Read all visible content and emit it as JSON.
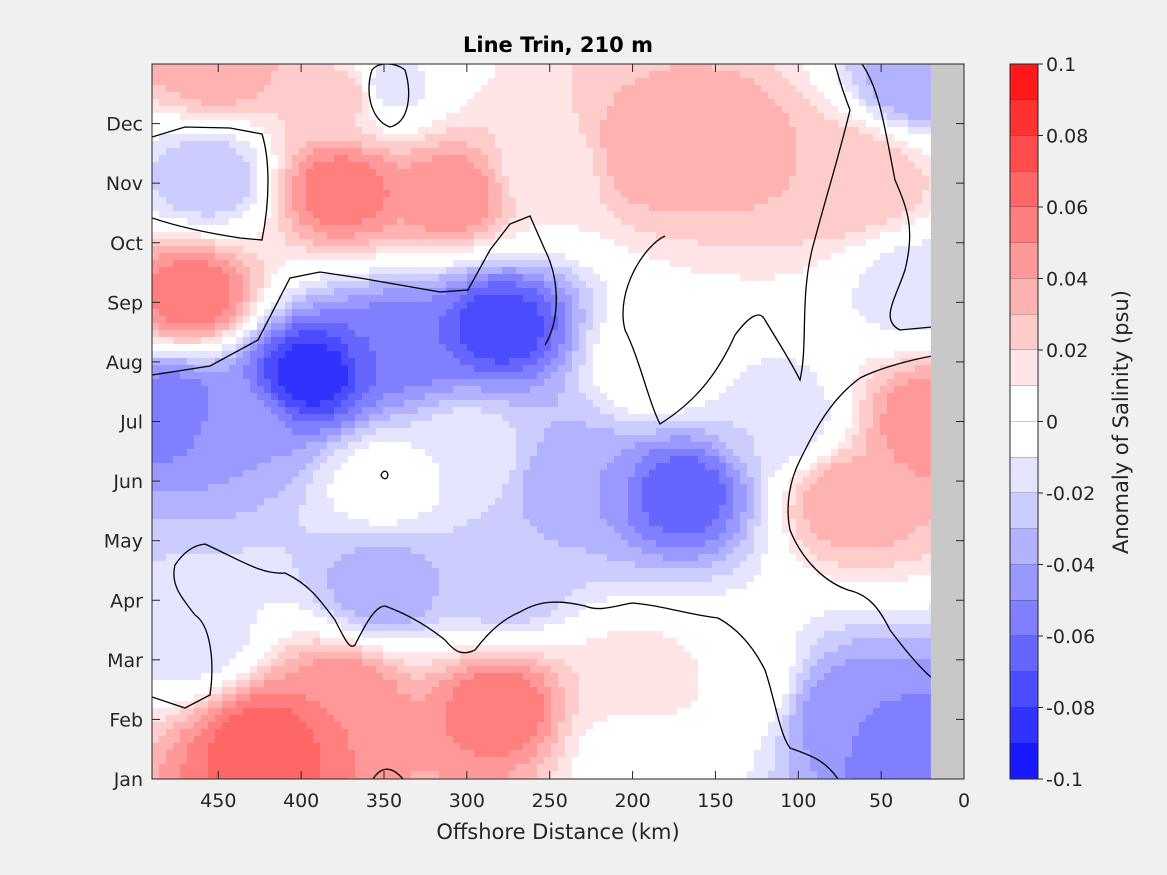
{
  "chart_data": {
    "type": "heatmap",
    "title": "Line Trin, 210 m",
    "xlabel": "Offshore Distance (km)",
    "ylabel": "",
    "colorbar_label": "Anomaly of Salinity (psu)",
    "x_reversed": true,
    "xlim": [
      0,
      490
    ],
    "ylim": [
      0,
      12
    ],
    "x_ticks": [
      450,
      400,
      350,
      300,
      250,
      200,
      150,
      100,
      50,
      0
    ],
    "x_tick_labels": [
      "450",
      "400",
      "350",
      "300",
      "250",
      "200",
      "150",
      "100",
      "50",
      "0"
    ],
    "y_ticks": [
      0,
      1,
      2,
      3,
      4,
      5,
      6,
      7,
      8,
      9,
      10,
      11
    ],
    "y_tick_labels": [
      "Jan",
      "Feb",
      "Mar",
      "Apr",
      "May",
      "Jun",
      "Jul",
      "Aug",
      "Sep",
      "Oct",
      "Nov",
      "Dec"
    ],
    "color_limits": [
      -0.1,
      0.1
    ],
    "colorbar_ticks": [
      0.1,
      0.08,
      0.06,
      0.04,
      0.02,
      0,
      -0.02,
      -0.04,
      -0.06,
      -0.08,
      -0.1
    ],
    "colorbar_tick_labels": [
      "0.1",
      "0.08",
      "0.06",
      "0.04",
      "0.02",
      "0",
      "-0.02",
      "-0.04",
      "-0.06",
      "-0.08",
      "-0.1"
    ],
    "no_data_x_range": [
      0,
      20
    ],
    "anomaly_features": [
      {
        "x": 450,
        "y": 12.0,
        "value": 0.04
      },
      {
        "x": 370,
        "y": 11.5,
        "value": 0.03
      },
      {
        "x": 350,
        "y": 11.6,
        "value": -0.02
      },
      {
        "x": 455,
        "y": 10.1,
        "value": -0.03
      },
      {
        "x": 375,
        "y": 9.9,
        "value": 0.06
      },
      {
        "x": 310,
        "y": 9.8,
        "value": 0.05
      },
      {
        "x": 190,
        "y": 10.5,
        "value": 0.04
      },
      {
        "x": 140,
        "y": 10.6,
        "value": 0.04
      },
      {
        "x": 250,
        "y": 10.2,
        "value": 0.01
      },
      {
        "x": 80,
        "y": 10.2,
        "value": 0.03
      },
      {
        "x": 30,
        "y": 11.7,
        "value": -0.04
      },
      {
        "x": 465,
        "y": 8.1,
        "value": 0.06
      },
      {
        "x": 475,
        "y": 6.2,
        "value": -0.06
      },
      {
        "x": 395,
        "y": 6.8,
        "value": -0.09
      },
      {
        "x": 340,
        "y": 7.3,
        "value": -0.06
      },
      {
        "x": 280,
        "y": 7.6,
        "value": -0.08
      },
      {
        "x": 440,
        "y": 6.0,
        "value": -0.04
      },
      {
        "x": 350,
        "y": 5.0,
        "value": 0.0
      },
      {
        "x": 300,
        "y": 5.5,
        "value": -0.01
      },
      {
        "x": 235,
        "y": 5.0,
        "value": -0.04
      },
      {
        "x": 170,
        "y": 4.8,
        "value": -0.07
      },
      {
        "x": 110,
        "y": 6.0,
        "value": -0.02
      },
      {
        "x": 185,
        "y": 7.0,
        "value": 0.01
      },
      {
        "x": 350,
        "y": 3.2,
        "value": -0.04
      },
      {
        "x": 275,
        "y": 3.3,
        "value": -0.03
      },
      {
        "x": 465,
        "y": 2.4,
        "value": -0.02
      },
      {
        "x": 420,
        "y": 0.6,
        "value": 0.07
      },
      {
        "x": 375,
        "y": 1.4,
        "value": 0.05
      },
      {
        "x": 280,
        "y": 1.2,
        "value": 0.06
      },
      {
        "x": 200,
        "y": 1.6,
        "value": 0.02
      },
      {
        "x": 140,
        "y": 1.6,
        "value": 0.01
      },
      {
        "x": 200,
        "y": 0.5,
        "value": 0.0
      },
      {
        "x": 70,
        "y": 1.1,
        "value": -0.05
      },
      {
        "x": 30,
        "y": 0.4,
        "value": -0.06
      },
      {
        "x": 20,
        "y": 6.0,
        "value": 0.05
      },
      {
        "x": 70,
        "y": 4.7,
        "value": 0.04
      },
      {
        "x": 60,
        "y": 10.0,
        "value": 0.03
      },
      {
        "x": 30,
        "y": 8.3,
        "value": -0.02
      }
    ]
  },
  "colors": {
    "background": "#f0f0f0",
    "no_data": "#c8c8c8",
    "contour": "#000000"
  }
}
